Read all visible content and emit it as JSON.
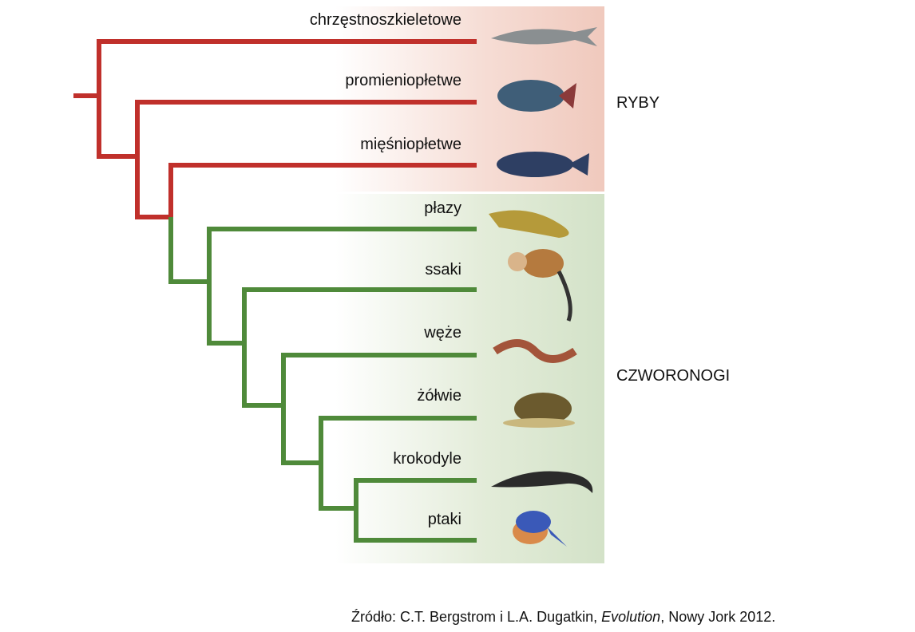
{
  "tree": {
    "leaves": [
      "chrzęstnoszkieletowe",
      "promieniopłetwe",
      "mięśniopłetwe",
      "płazy",
      "ssaki",
      "węże",
      "żółwie",
      "krokodyle",
      "ptaki"
    ],
    "groups": [
      "RYBY",
      "CZWORONOGI"
    ]
  },
  "source": {
    "prefix": "Źródło: C.T. Bergstrom i L.A. Dugatkin, ",
    "title": "Evolution",
    "suffix": ", Nowy Jork 2012."
  }
}
